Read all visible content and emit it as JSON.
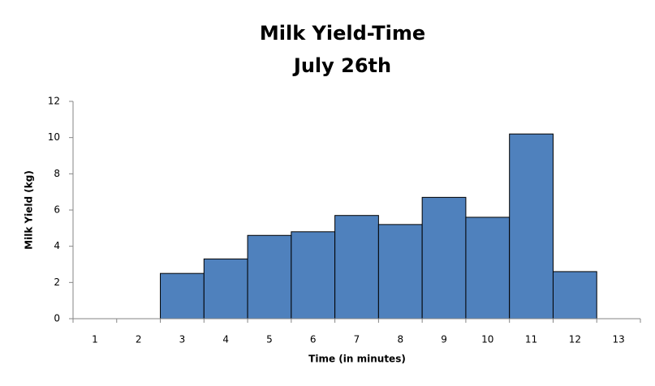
{
  "chart_data": {
    "type": "bar",
    "title": "Milk Yield-Time",
    "subtitle": "July 26th",
    "x_label": "Time (in minutes)",
    "y_label": "Milk Yield (kg)",
    "categories": [
      "1",
      "2",
      "3",
      "4",
      "5",
      "6",
      "7",
      "8",
      "9",
      "10",
      "11",
      "12",
      "13"
    ],
    "values": [
      null,
      null,
      2.5,
      3.3,
      4.6,
      4.8,
      5.7,
      5.2,
      6.7,
      5.6,
      10.2,
      2.6,
      null
    ],
    "color": "#4f81bd",
    "ylim": [
      0,
      12
    ],
    "yticks": [
      0,
      2,
      4,
      6,
      8,
      10,
      12
    ],
    "grid": false
  }
}
